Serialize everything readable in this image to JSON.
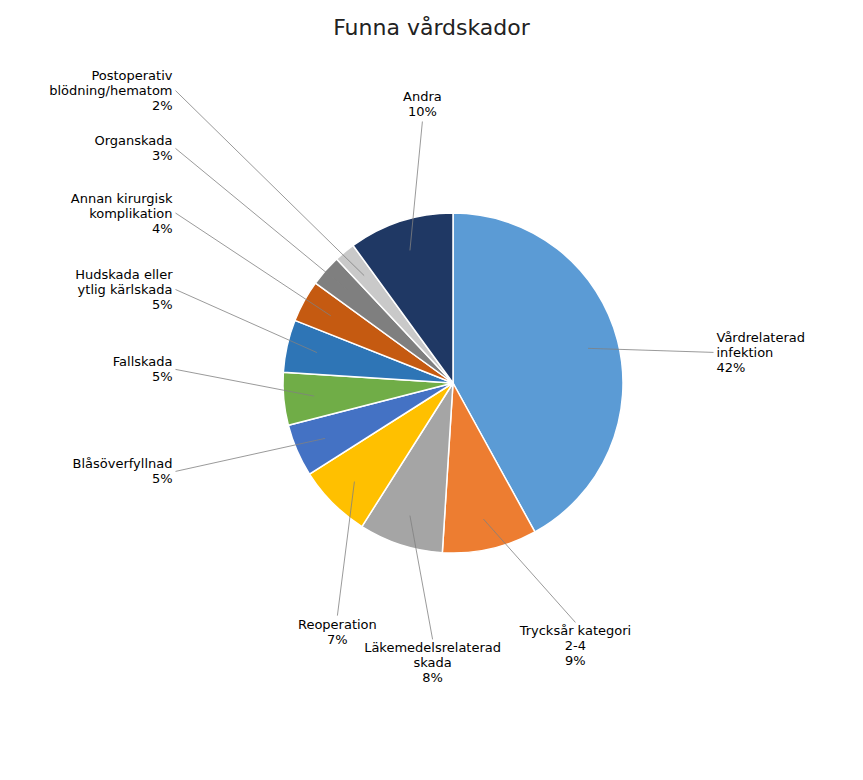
{
  "chart_data": {
    "type": "pie",
    "title": "Funna vårdskador",
    "categories": [
      "Vårdrelaterad\ninfektion\n42%",
      "Trycksår kategori\n2-4\n9%",
      "Läkemedelsrelaterad\nskada\n8%",
      "Reoperation\n7%",
      "Blåsöverfyllnad\n5%",
      "Fallskada\n5%",
      "Hudskada eller\nytlig kärlskada\n5%",
      "Annan kirurgisk\nkomplikation\n4%",
      "Organskada\n3%",
      "Postoperativ\nblödning/hematom\n2%",
      "Andra\n10%"
    ],
    "values": [
      42,
      9,
      8,
      7,
      5,
      5,
      5,
      4,
      3,
      2,
      10
    ],
    "colors": [
      "#5B9BD5",
      "#ED7D31",
      "#A5A5A5",
      "#FFC000",
      "#4472C4",
      "#70AD47",
      "#2E75B6",
      "#C55A11",
      "#7F7F7F",
      "#C9C9C9",
      "#1F3864"
    ]
  }
}
